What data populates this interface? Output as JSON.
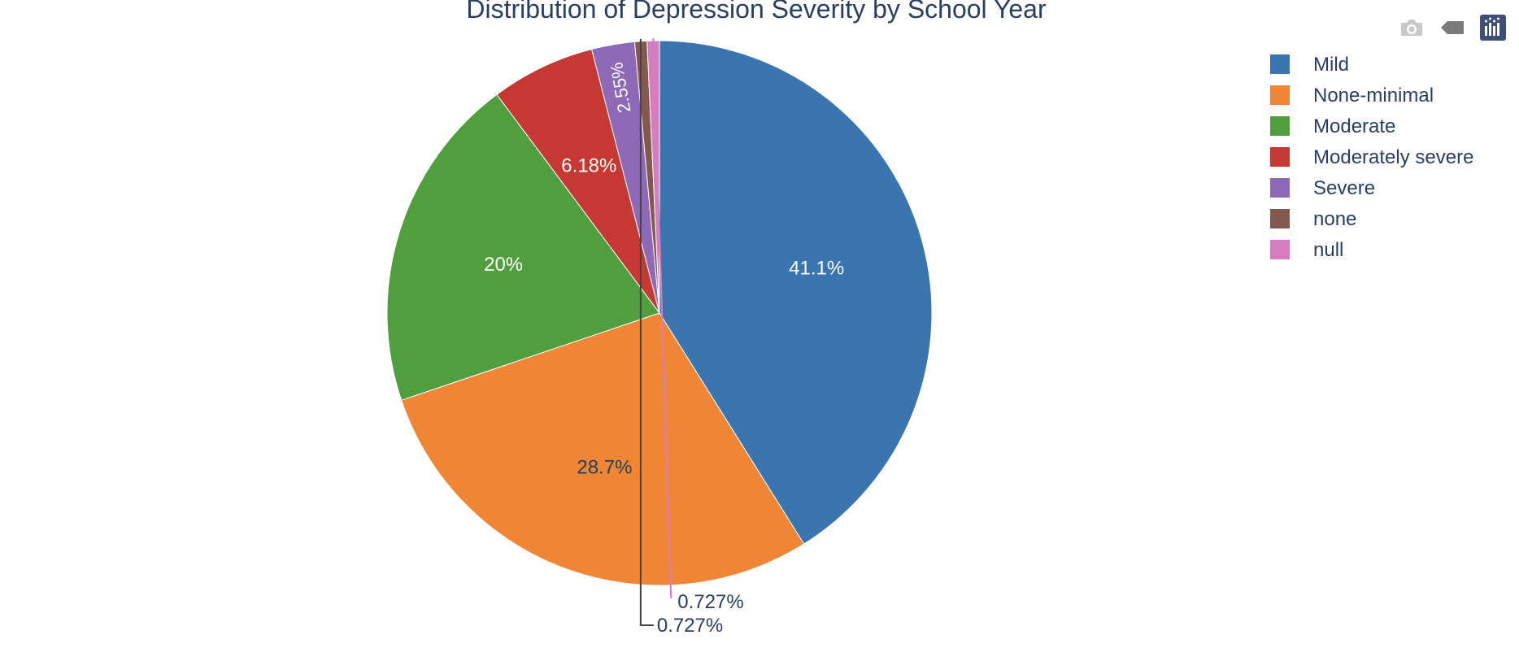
{
  "chart_data": {
    "type": "pie",
    "title": "Distribution of Depression Severity by School Year",
    "slices": [
      {
        "label": "Mild",
        "value": 41.1,
        "text": "41.1%",
        "color": "#3a75af"
      },
      {
        "label": "None-minimal",
        "value": 28.7,
        "text": "28.7%",
        "color": "#ef8636"
      },
      {
        "label": "Moderate",
        "value": 20.0,
        "text": "20%",
        "color": "#519e3e"
      },
      {
        "label": "Moderately severe",
        "value": 6.18,
        "text": "6.18%",
        "color": "#c53932"
      },
      {
        "label": "Severe",
        "value": 2.55,
        "text": "2.55%",
        "color": "#8d69b8"
      },
      {
        "label": "none",
        "value": 0.727,
        "text": "0.727%",
        "color": "#84584e"
      },
      {
        "label": "null",
        "value": 0.727,
        "text": "0.727%",
        "color": "#d57dbf"
      }
    ],
    "legend": {
      "position": "top-right"
    },
    "sort": "descending",
    "direction": "clockwise",
    "start": "12 o'clock"
  },
  "modebar": {
    "icons": [
      "camera-icon",
      "zoom-back-icon",
      "plotly-logo-icon"
    ],
    "accent": "#3f4f75"
  }
}
